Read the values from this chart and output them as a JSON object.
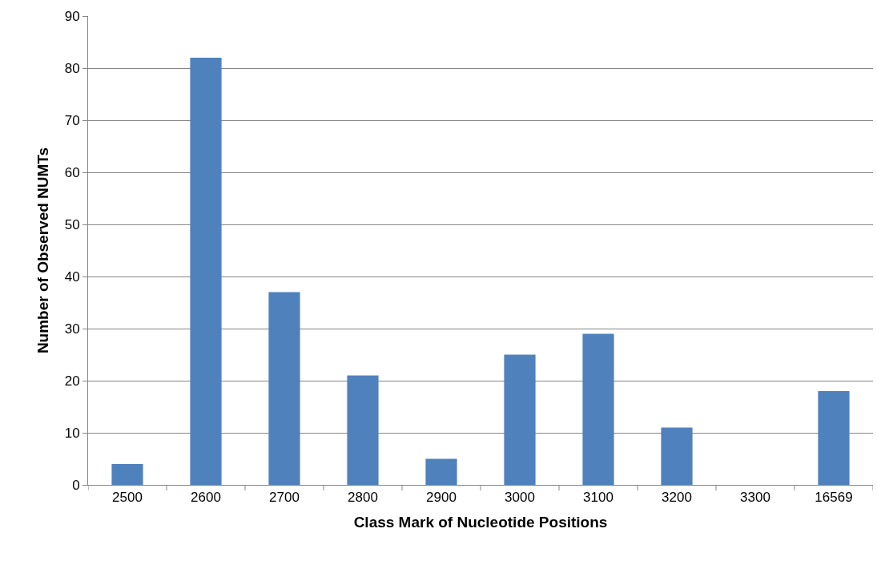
{
  "chart_data": {
    "type": "bar",
    "xlabel": "Class Mark of Nucleotide Positions",
    "ylabel": "Number of Observed NUMTs",
    "categories": [
      "2500",
      "2600",
      "2700",
      "2800",
      "2900",
      "3000",
      "3100",
      "3200",
      "3300",
      "16569"
    ],
    "values": [
      4,
      82,
      37,
      21,
      5,
      25,
      29,
      11,
      0,
      18
    ],
    "color": "#4f81bd",
    "ylim": [
      0,
      90
    ],
    "yticks": [
      0,
      10,
      20,
      30,
      40,
      50,
      60,
      70,
      80,
      90
    ],
    "grid": "y",
    "legend": false
  }
}
